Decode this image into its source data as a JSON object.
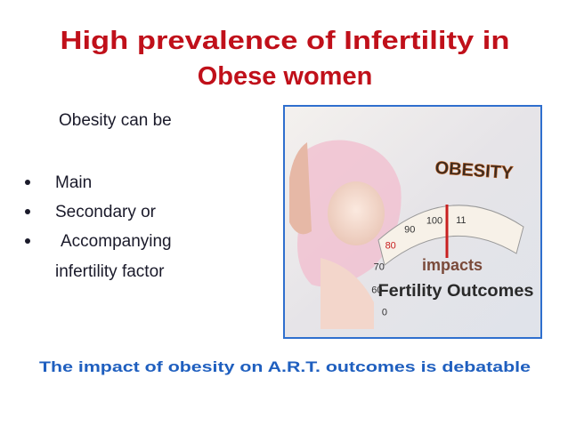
{
  "title": [
    "High prevalence of Infertility in",
    "Obese women"
  ],
  "intro": "Obesity can be",
  "bullets": [
    "Main",
    "Secondary or",
    "Accompanying"
  ],
  "continuation": "infertility factor",
  "image": {
    "heading": "OBESITY",
    "scale": [
      "0",
      "60",
      "70",
      "80",
      "90",
      "100",
      "11"
    ],
    "caption": [
      "impacts",
      "Fertility Outcomes"
    ]
  },
  "footer": "The impact of obesity on A.R.T. outcomes is debatable"
}
